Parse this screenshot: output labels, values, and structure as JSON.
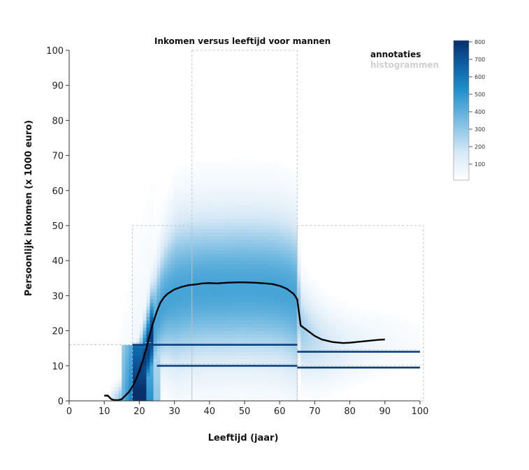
{
  "chart_data": {
    "type": "heatmap",
    "title": "Inkomen versus leeftijd voor mannen",
    "xlabel": "Leeftijd (jaar)",
    "ylabel": "Persoonlijk inkomen (x 1000 euro)",
    "xlim": [
      0,
      100
    ],
    "ylim": [
      0,
      100
    ],
    "x_ticks": [
      "0",
      "10",
      "20",
      "30",
      "40",
      "50",
      "60",
      "70",
      "80",
      "90",
      "100"
    ],
    "y_ticks": [
      "0",
      "10",
      "20",
      "30",
      "40",
      "50",
      "60",
      "70",
      "80",
      "90",
      "100"
    ],
    "grid": false,
    "colorscale": {
      "min": 0,
      "max": 800,
      "ticks": [
        "100",
        "200",
        "300",
        "400",
        "500",
        "600",
        "700",
        "800"
      ],
      "colors": [
        "#ffffff",
        "#d6e8f6",
        "#6fb8e0",
        "#1f8fcc",
        "#0b5a9e",
        "#08306b"
      ]
    },
    "legend": {
      "position": "top-right",
      "items": [
        {
          "label": "annotaties",
          "active": true
        },
        {
          "label": "histogrammen",
          "active": false
        }
      ]
    },
    "median_line": {
      "x": [
        10,
        11,
        12,
        13,
        14,
        15,
        16,
        17,
        18,
        19,
        20,
        21,
        22,
        23,
        24,
        25,
        26,
        27,
        28,
        30,
        32,
        34,
        36,
        38,
        40,
        42,
        45,
        48,
        50,
        53,
        56,
        58,
        60,
        62,
        64,
        65,
        66,
        68,
        70,
        72,
        75,
        78,
        80,
        83,
        86,
        88,
        90
      ],
      "y": [
        1.5,
        1.5,
        0.5,
        0.2,
        0.2,
        0.5,
        1.5,
        2.5,
        4.0,
        6.0,
        8.5,
        11.5,
        15.0,
        19.0,
        22.5,
        25.5,
        28.0,
        29.5,
        30.5,
        31.8,
        32.5,
        33.0,
        33.2,
        33.5,
        33.6,
        33.5,
        33.7,
        33.8,
        33.8,
        33.7,
        33.5,
        33.3,
        32.8,
        32.0,
        30.5,
        29.0,
        21.5,
        20.0,
        18.5,
        17.5,
        16.8,
        16.5,
        16.6,
        16.9,
        17.2,
        17.4,
        17.5
      ]
    },
    "annotation_lines": [
      {
        "x": [
          18,
          65
        ],
        "y": 16.0
      },
      {
        "x": [
          65,
          100
        ],
        "y": 14.0
      },
      {
        "x": [
          25,
          65
        ],
        "y": 10.0
      },
      {
        "x": [
          65,
          100
        ],
        "y": 9.5
      }
    ],
    "annotation_boxes": [
      {
        "x": [
          18,
          35
        ],
        "y": [
          0,
          50
        ]
      },
      {
        "x": [
          35,
          65
        ],
        "y": [
          0,
          100
        ]
      },
      {
        "x": [
          65,
          101
        ],
        "y": [
          0,
          50
        ]
      }
    ],
    "reference_line": {
      "x": [
        0,
        18
      ],
      "y": 16
    }
  }
}
